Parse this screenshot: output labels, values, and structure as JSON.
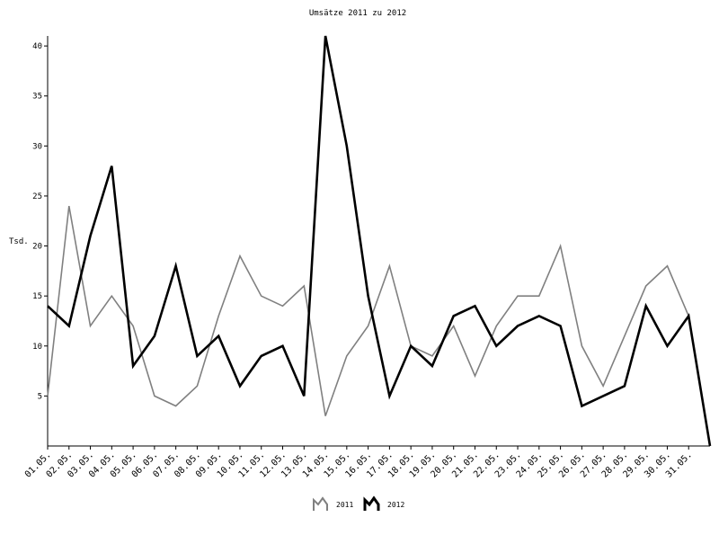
{
  "chart_data": {
    "type": "line",
    "title": "Umsätze 2011 zu 2012",
    "xlabel": "",
    "ylabel": "Tsd.",
    "ylim": [
      0,
      41
    ],
    "yticks": [
      5,
      10,
      15,
      20,
      25,
      30,
      35,
      40
    ],
    "categories": [
      "01.05.",
      "02.05.",
      "03.05.",
      "04.05.",
      "05.05.",
      "06.05.",
      "07.05.",
      "08.05.",
      "09.05.",
      "10.05.",
      "11.05.",
      "12.05.",
      "13.05.",
      "14.05.",
      "15.05.",
      "16.05.",
      "17.05.",
      "18.05.",
      "19.05.",
      "20.05.",
      "21.05.",
      "22.05.",
      "23.05.",
      "24.05.",
      "25.05.",
      "26.05.",
      "27.05.",
      "28.05.",
      "29.05.",
      "30.05.",
      "31.05."
    ],
    "grid": false,
    "legend_position": "bottom-center",
    "series": [
      {
        "name": "2011",
        "color": "#808080",
        "values": [
          5,
          24,
          12,
          15,
          12,
          5,
          4,
          6,
          13,
          19,
          15,
          14,
          16,
          3,
          9,
          12,
          18,
          10,
          9,
          12,
          7,
          12,
          15,
          15,
          20,
          10,
          6,
          11,
          16,
          18,
          13
        ]
      },
      {
        "name": "2012",
        "color": "#000000",
        "values": [
          14,
          12,
          21,
          28,
          8,
          11,
          18,
          9,
          11,
          6,
          9,
          10,
          5,
          41,
          30,
          15,
          5,
          10,
          8,
          13,
          14,
          10,
          12,
          13,
          12,
          4,
          5,
          6,
          14,
          10,
          13
        ]
      }
    ]
  }
}
